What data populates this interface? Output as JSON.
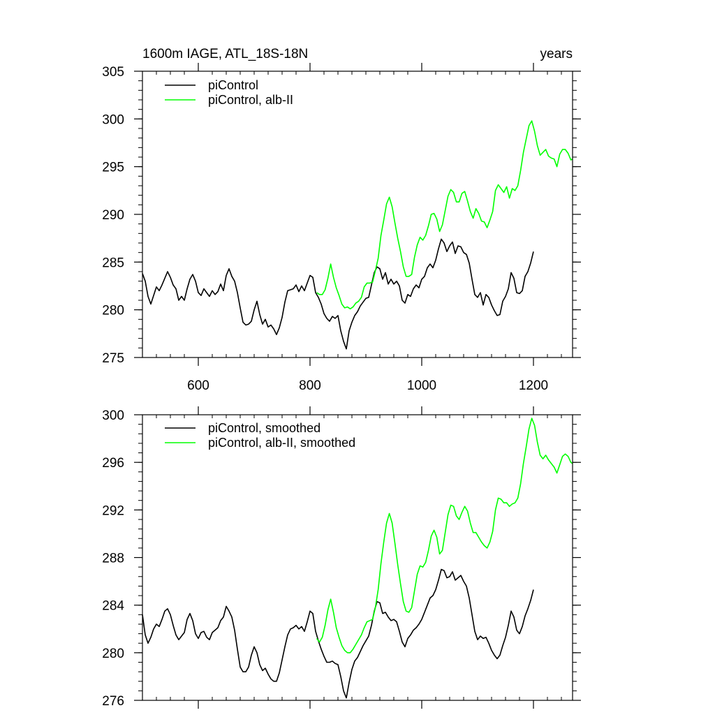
{
  "chart_data": [
    {
      "type": "line",
      "title": "1600m IAGE, ATL_18S-18N",
      "title_right": "years",
      "xlabel": "",
      "ylabel": "",
      "xlim": [
        500,
        1270
      ],
      "ylim": [
        275,
        305
      ],
      "x_ticks": [
        600,
        800,
        1000,
        1200
      ],
      "y_ticks": [
        275,
        280,
        285,
        290,
        295,
        300,
        305
      ],
      "legend_position": "top-left",
      "series": [
        {
          "name": "piControl",
          "color": "#000000",
          "x": [
            500,
            505,
            510,
            515,
            520,
            525,
            530,
            535,
            540,
            545,
            550,
            555,
            560,
            565,
            570,
            575,
            580,
            585,
            590,
            595,
            600,
            605,
            610,
            615,
            620,
            625,
            630,
            635,
            640,
            645,
            650,
            655,
            660,
            665,
            670,
            675,
            680,
            685,
            690,
            695,
            700,
            705,
            710,
            715,
            720,
            725,
            730,
            735,
            740,
            745,
            750,
            755,
            760,
            765,
            770,
            775,
            780,
            785,
            790,
            795,
            800,
            805,
            810,
            815,
            820,
            825,
            830,
            835,
            840,
            845,
            850,
            855,
            860,
            865,
            870,
            875,
            880,
            885,
            890,
            895,
            900,
            905,
            910,
            915,
            920,
            925,
            930,
            935,
            940,
            945,
            950,
            955,
            960,
            965,
            970,
            975,
            980,
            985,
            990,
            995,
            1000,
            1005,
            1010,
            1015,
            1020,
            1025,
            1030,
            1035,
            1040,
            1045,
            1050,
            1055,
            1060,
            1065,
            1070,
            1075,
            1080,
            1085,
            1090,
            1095,
            1100,
            1105,
            1110,
            1115,
            1120,
            1125,
            1130,
            1135,
            1140,
            1145,
            1150,
            1155,
            1160,
            1165,
            1170,
            1175,
            1180,
            1185,
            1190,
            1195,
            1200
          ],
          "values": [
            283.8,
            283.0,
            281.4,
            280.6,
            281.5,
            282.4,
            282.0,
            282.6,
            283.3,
            284.0,
            283.4,
            282.6,
            282.2,
            281.0,
            281.4,
            281.0,
            282.2,
            283.2,
            283.7,
            283.0,
            281.8,
            281.5,
            282.2,
            281.8,
            281.4,
            282.0,
            281.6,
            281.9,
            282.7,
            282.0,
            283.6,
            284.3,
            283.5,
            283.0,
            281.8,
            280.2,
            278.7,
            278.4,
            278.5,
            278.8,
            280.0,
            280.9,
            279.5,
            278.5,
            279.0,
            278.2,
            278.4,
            278.0,
            277.4,
            278.1,
            279.2,
            280.8,
            282.0,
            282.1,
            282.2,
            282.6,
            281.9,
            282.5,
            282.0,
            282.8,
            283.6,
            283.4,
            281.8,
            281.3,
            280.6,
            279.6,
            279.1,
            278.8,
            279.3,
            279.1,
            279.4,
            277.8,
            276.7,
            275.9,
            277.8,
            278.7,
            279.4,
            279.8,
            280.4,
            280.8,
            281.2,
            281.3,
            282.6,
            283.9,
            284.5,
            284.3,
            283.2,
            283.9,
            282.7,
            283.2,
            282.7,
            283.0,
            282.5,
            281.0,
            280.7,
            281.6,
            281.4,
            282.2,
            282.6,
            282.3,
            283.2,
            283.5,
            284.4,
            284.8,
            284.4,
            285.2,
            286.4,
            287.4,
            287.0,
            286.1,
            286.7,
            287.1,
            285.9,
            286.7,
            286.6,
            286.0,
            285.8,
            284.9,
            283.2,
            281.6,
            281.3,
            281.8,
            280.5,
            281.6,
            281.3,
            280.5,
            279.9,
            279.4,
            279.5,
            280.9,
            281.4,
            282.2,
            283.9,
            283.3,
            281.8,
            281.7,
            282.0,
            283.5,
            284.0,
            284.9,
            286.1
          ]
        },
        {
          "name": "piControl, alb-II",
          "color": "#00ff00",
          "x": [
            812,
            817,
            822,
            827,
            832,
            837,
            842,
            847,
            852,
            857,
            862,
            867,
            872,
            877,
            882,
            887,
            892,
            897,
            902,
            907,
            912,
            917,
            922,
            927,
            932,
            937,
            942,
            947,
            952,
            957,
            962,
            967,
            972,
            977,
            982,
            987,
            992,
            997,
            1002,
            1007,
            1012,
            1017,
            1022,
            1027,
            1032,
            1037,
            1042,
            1047,
            1052,
            1057,
            1062,
            1067,
            1072,
            1077,
            1082,
            1087,
            1092,
            1097,
            1102,
            1107,
            1112,
            1117,
            1122,
            1127,
            1132,
            1137,
            1142,
            1147,
            1152,
            1157,
            1162,
            1167,
            1172,
            1177,
            1182,
            1187,
            1192,
            1197,
            1202,
            1207,
            1212,
            1217,
            1222,
            1227,
            1232,
            1237,
            1242,
            1247,
            1252,
            1257,
            1262,
            1267,
            1270
          ],
          "values": [
            281.8,
            281.6,
            281.6,
            282.1,
            283.3,
            284.8,
            283.4,
            282.3,
            281.5,
            280.6,
            280.2,
            280.3,
            280.1,
            280.3,
            280.7,
            280.9,
            281.3,
            282.4,
            282.8,
            282.8,
            282.9,
            284.1,
            285.4,
            287.8,
            289.4,
            291.1,
            291.8,
            290.8,
            289.1,
            287.5,
            286.1,
            284.5,
            283.5,
            283.5,
            283.7,
            285.5,
            286.8,
            287.6,
            287.3,
            287.8,
            288.8,
            290.0,
            290.1,
            289.5,
            288.2,
            288.9,
            290.4,
            291.9,
            292.6,
            292.3,
            291.3,
            291.3,
            292.2,
            292.4,
            291.4,
            290.3,
            289.6,
            290.6,
            290.1,
            289.3,
            289.2,
            288.6,
            289.4,
            290.3,
            292.5,
            293.1,
            292.7,
            292.3,
            292.9,
            291.7,
            292.7,
            292.5,
            293.0,
            294.6,
            296.5,
            297.9,
            299.3,
            299.8,
            298.7,
            297.2,
            296.2,
            296.5,
            296.8,
            296.1,
            295.9,
            295.8,
            295.0,
            296.3,
            296.8,
            296.8,
            296.4,
            295.7,
            295.8
          ]
        }
      ]
    },
    {
      "type": "line",
      "title": "",
      "xlabel": "",
      "ylabel": "",
      "xlim": [
        500,
        1270
      ],
      "ylim": [
        276,
        300
      ],
      "x_ticks": [
        600,
        800,
        1000,
        1200
      ],
      "y_ticks": [
        276,
        280,
        284,
        288,
        292,
        296,
        300
      ],
      "legend_position": "top-left",
      "series": [
        {
          "name": "piControl, smoothed",
          "color": "#000000",
          "x": [
            500,
            505,
            510,
            515,
            520,
            525,
            530,
            535,
            540,
            545,
            550,
            555,
            560,
            565,
            570,
            575,
            580,
            585,
            590,
            595,
            600,
            605,
            610,
            615,
            620,
            625,
            630,
            635,
            640,
            645,
            650,
            655,
            660,
            665,
            670,
            675,
            680,
            685,
            690,
            695,
            700,
            705,
            710,
            715,
            720,
            725,
            730,
            735,
            740,
            745,
            750,
            755,
            760,
            765,
            770,
            775,
            780,
            785,
            790,
            795,
            800,
            805,
            810,
            815,
            820,
            825,
            830,
            835,
            840,
            845,
            850,
            855,
            860,
            865,
            870,
            875,
            880,
            885,
            890,
            895,
            900,
            905,
            910,
            915,
            920,
            925,
            930,
            935,
            940,
            945,
            950,
            955,
            960,
            965,
            970,
            975,
            980,
            985,
            990,
            995,
            1000,
            1005,
            1010,
            1015,
            1020,
            1025,
            1030,
            1035,
            1040,
            1045,
            1050,
            1055,
            1060,
            1065,
            1070,
            1075,
            1080,
            1085,
            1090,
            1095,
            1100,
            1105,
            1110,
            1115,
            1120,
            1125,
            1130,
            1135,
            1140,
            1145,
            1150,
            1155,
            1160,
            1165,
            1170,
            1175,
            1180,
            1185,
            1190,
            1195,
            1200
          ],
          "values": [
            283.2,
            281.5,
            280.8,
            281.3,
            282.0,
            282.4,
            282.2,
            282.8,
            283.5,
            283.7,
            283.2,
            282.3,
            281.5,
            281.1,
            281.4,
            281.7,
            282.8,
            283.3,
            282.7,
            281.6,
            281.2,
            281.7,
            281.8,
            281.3,
            281.1,
            281.7,
            281.9,
            282.1,
            282.7,
            283.0,
            283.9,
            283.5,
            283.0,
            281.9,
            280.3,
            278.8,
            278.4,
            278.4,
            278.8,
            279.8,
            280.5,
            280.0,
            279.0,
            278.5,
            278.7,
            278.2,
            277.8,
            277.6,
            277.6,
            278.3,
            279.4,
            280.5,
            281.5,
            282.0,
            282.1,
            282.3,
            282.0,
            282.2,
            281.8,
            282.6,
            283.5,
            283.3,
            281.8,
            281.0,
            280.3,
            279.7,
            279.2,
            279.2,
            279.3,
            279.1,
            279.0,
            278.0,
            276.8,
            276.2,
            277.5,
            278.6,
            279.3,
            279.6,
            280.1,
            280.6,
            281.0,
            281.4,
            282.3,
            283.5,
            284.3,
            284.2,
            283.3,
            283.4,
            283.0,
            282.7,
            282.8,
            282.6,
            281.8,
            280.9,
            280.5,
            281.2,
            281.5,
            281.9,
            282.1,
            282.4,
            282.8,
            283.4,
            284.0,
            284.6,
            284.8,
            285.3,
            286.1,
            287.0,
            286.9,
            286.3,
            286.4,
            286.8,
            286.1,
            286.3,
            286.5,
            286.0,
            285.6,
            284.6,
            283.2,
            281.8,
            281.1,
            281.4,
            281.2,
            281.3,
            280.8,
            280.2,
            279.8,
            279.5,
            279.8,
            280.6,
            281.3,
            282.3,
            283.5,
            283.0,
            281.9,
            281.6,
            282.2,
            283.1,
            283.7,
            284.4,
            285.3
          ]
        },
        {
          "name": "piControl, alb-II, smoothed",
          "color": "#00ff00",
          "x": [
            812,
            817,
            822,
            827,
            832,
            837,
            842,
            847,
            852,
            857,
            862,
            867,
            872,
            877,
            882,
            887,
            892,
            897,
            902,
            907,
            912,
            917,
            922,
            927,
            932,
            937,
            942,
            947,
            952,
            957,
            962,
            967,
            972,
            977,
            982,
            987,
            992,
            997,
            1002,
            1007,
            1012,
            1017,
            1022,
            1027,
            1032,
            1037,
            1042,
            1047,
            1052,
            1057,
            1062,
            1067,
            1072,
            1077,
            1082,
            1087,
            1092,
            1097,
            1102,
            1107,
            1112,
            1117,
            1122,
            1127,
            1132,
            1137,
            1142,
            1147,
            1152,
            1157,
            1162,
            1167,
            1172,
            1177,
            1182,
            1187,
            1192,
            1197,
            1202,
            1207,
            1212,
            1217,
            1222,
            1227,
            1232,
            1237,
            1242,
            1247,
            1252,
            1257,
            1262,
            1267,
            1270
          ],
          "values": [
            281.2,
            280.9,
            281.3,
            282.3,
            283.6,
            284.5,
            283.4,
            282.1,
            281.3,
            280.6,
            280.2,
            280.0,
            280.0,
            280.3,
            280.7,
            281.1,
            281.5,
            282.1,
            282.6,
            282.7,
            282.8,
            283.8,
            285.3,
            287.5,
            289.3,
            290.9,
            291.7,
            290.9,
            289.2,
            287.4,
            285.8,
            284.3,
            283.5,
            283.4,
            283.8,
            285.2,
            286.6,
            287.3,
            287.2,
            287.6,
            288.6,
            289.8,
            290.3,
            289.7,
            288.3,
            288.6,
            290.1,
            291.6,
            292.4,
            292.3,
            291.5,
            291.2,
            291.8,
            292.3,
            291.9,
            290.9,
            290.1,
            290.1,
            289.7,
            289.3,
            289.0,
            288.8,
            289.3,
            290.2,
            292.0,
            293.0,
            292.9,
            292.6,
            292.6,
            292.3,
            292.5,
            292.6,
            293.0,
            294.2,
            295.9,
            297.3,
            298.8,
            299.7,
            299.1,
            297.7,
            296.6,
            296.3,
            296.6,
            296.2,
            295.9,
            295.6,
            295.1,
            295.8,
            296.5,
            296.7,
            296.5,
            296.0,
            295.9
          ]
        }
      ]
    }
  ]
}
